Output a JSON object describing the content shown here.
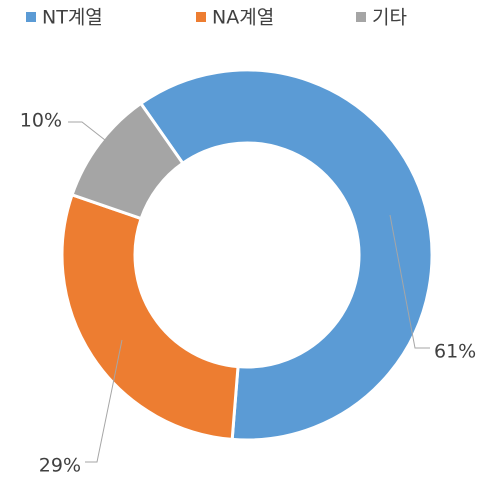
{
  "chart_data": {
    "type": "donut",
    "categories": [
      "NT계열",
      "NA계열",
      "기타"
    ],
    "values": [
      61,
      29,
      10
    ],
    "value_labels": [
      "61%",
      "29%",
      "10%"
    ],
    "colors": [
      "#5b9bd5",
      "#ed7d31",
      "#a5a5a5"
    ],
    "legend": "top"
  }
}
